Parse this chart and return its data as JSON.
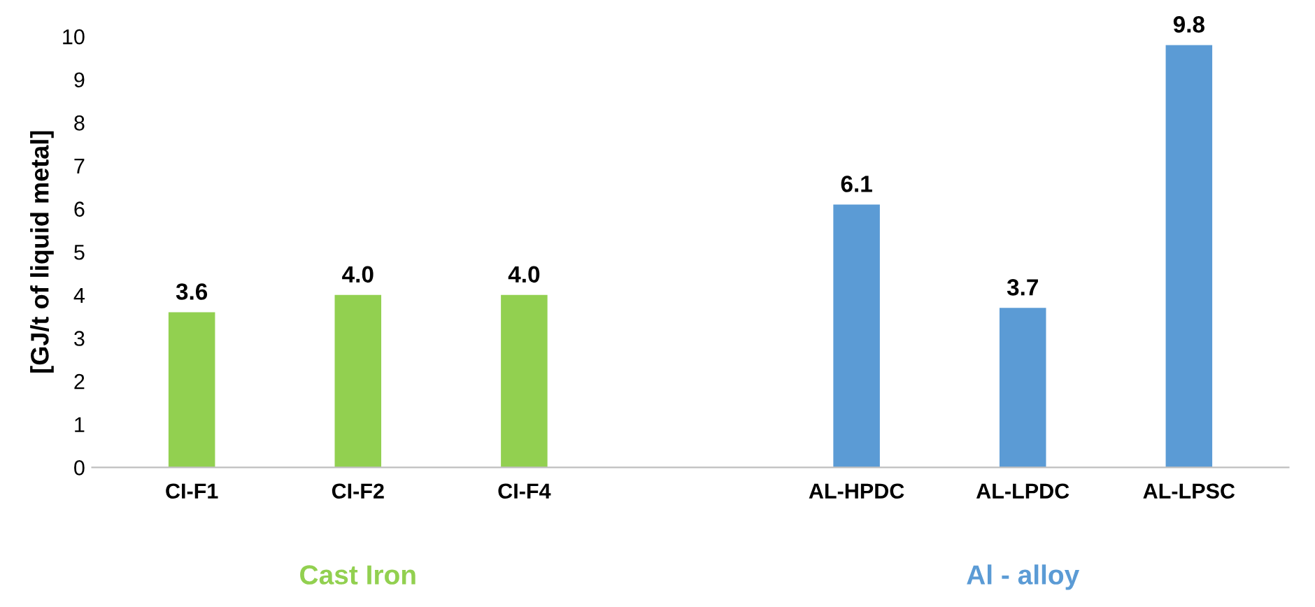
{
  "chart_data": {
    "type": "bar",
    "ylabel": "[GJ/t of liquid metal]",
    "categories": [
      "CI-F1",
      "CI-F2",
      "CI-F4",
      null,
      "AL-HPDC",
      "AL-LPDC",
      "AL-LPSC"
    ],
    "values": [
      3.6,
      4.0,
      4.0,
      null,
      6.1,
      3.7,
      9.8
    ],
    "value_labels": [
      "3.6",
      "4.0",
      "4.0",
      null,
      "6.1",
      "3.7",
      "9.8"
    ],
    "colors": [
      "#92d050",
      "#92d050",
      "#92d050",
      "#ffffff",
      "#5b9bd5",
      "#5b9bd5",
      "#5b9bd5"
    ],
    "ylim": [
      0,
      10
    ],
    "yticks": [
      0,
      1,
      2,
      3,
      4,
      5,
      6,
      7,
      8,
      9,
      10
    ],
    "grid": false,
    "legend": false,
    "annotations": [
      "Cast Iron",
      "Al - alloy"
    ]
  }
}
